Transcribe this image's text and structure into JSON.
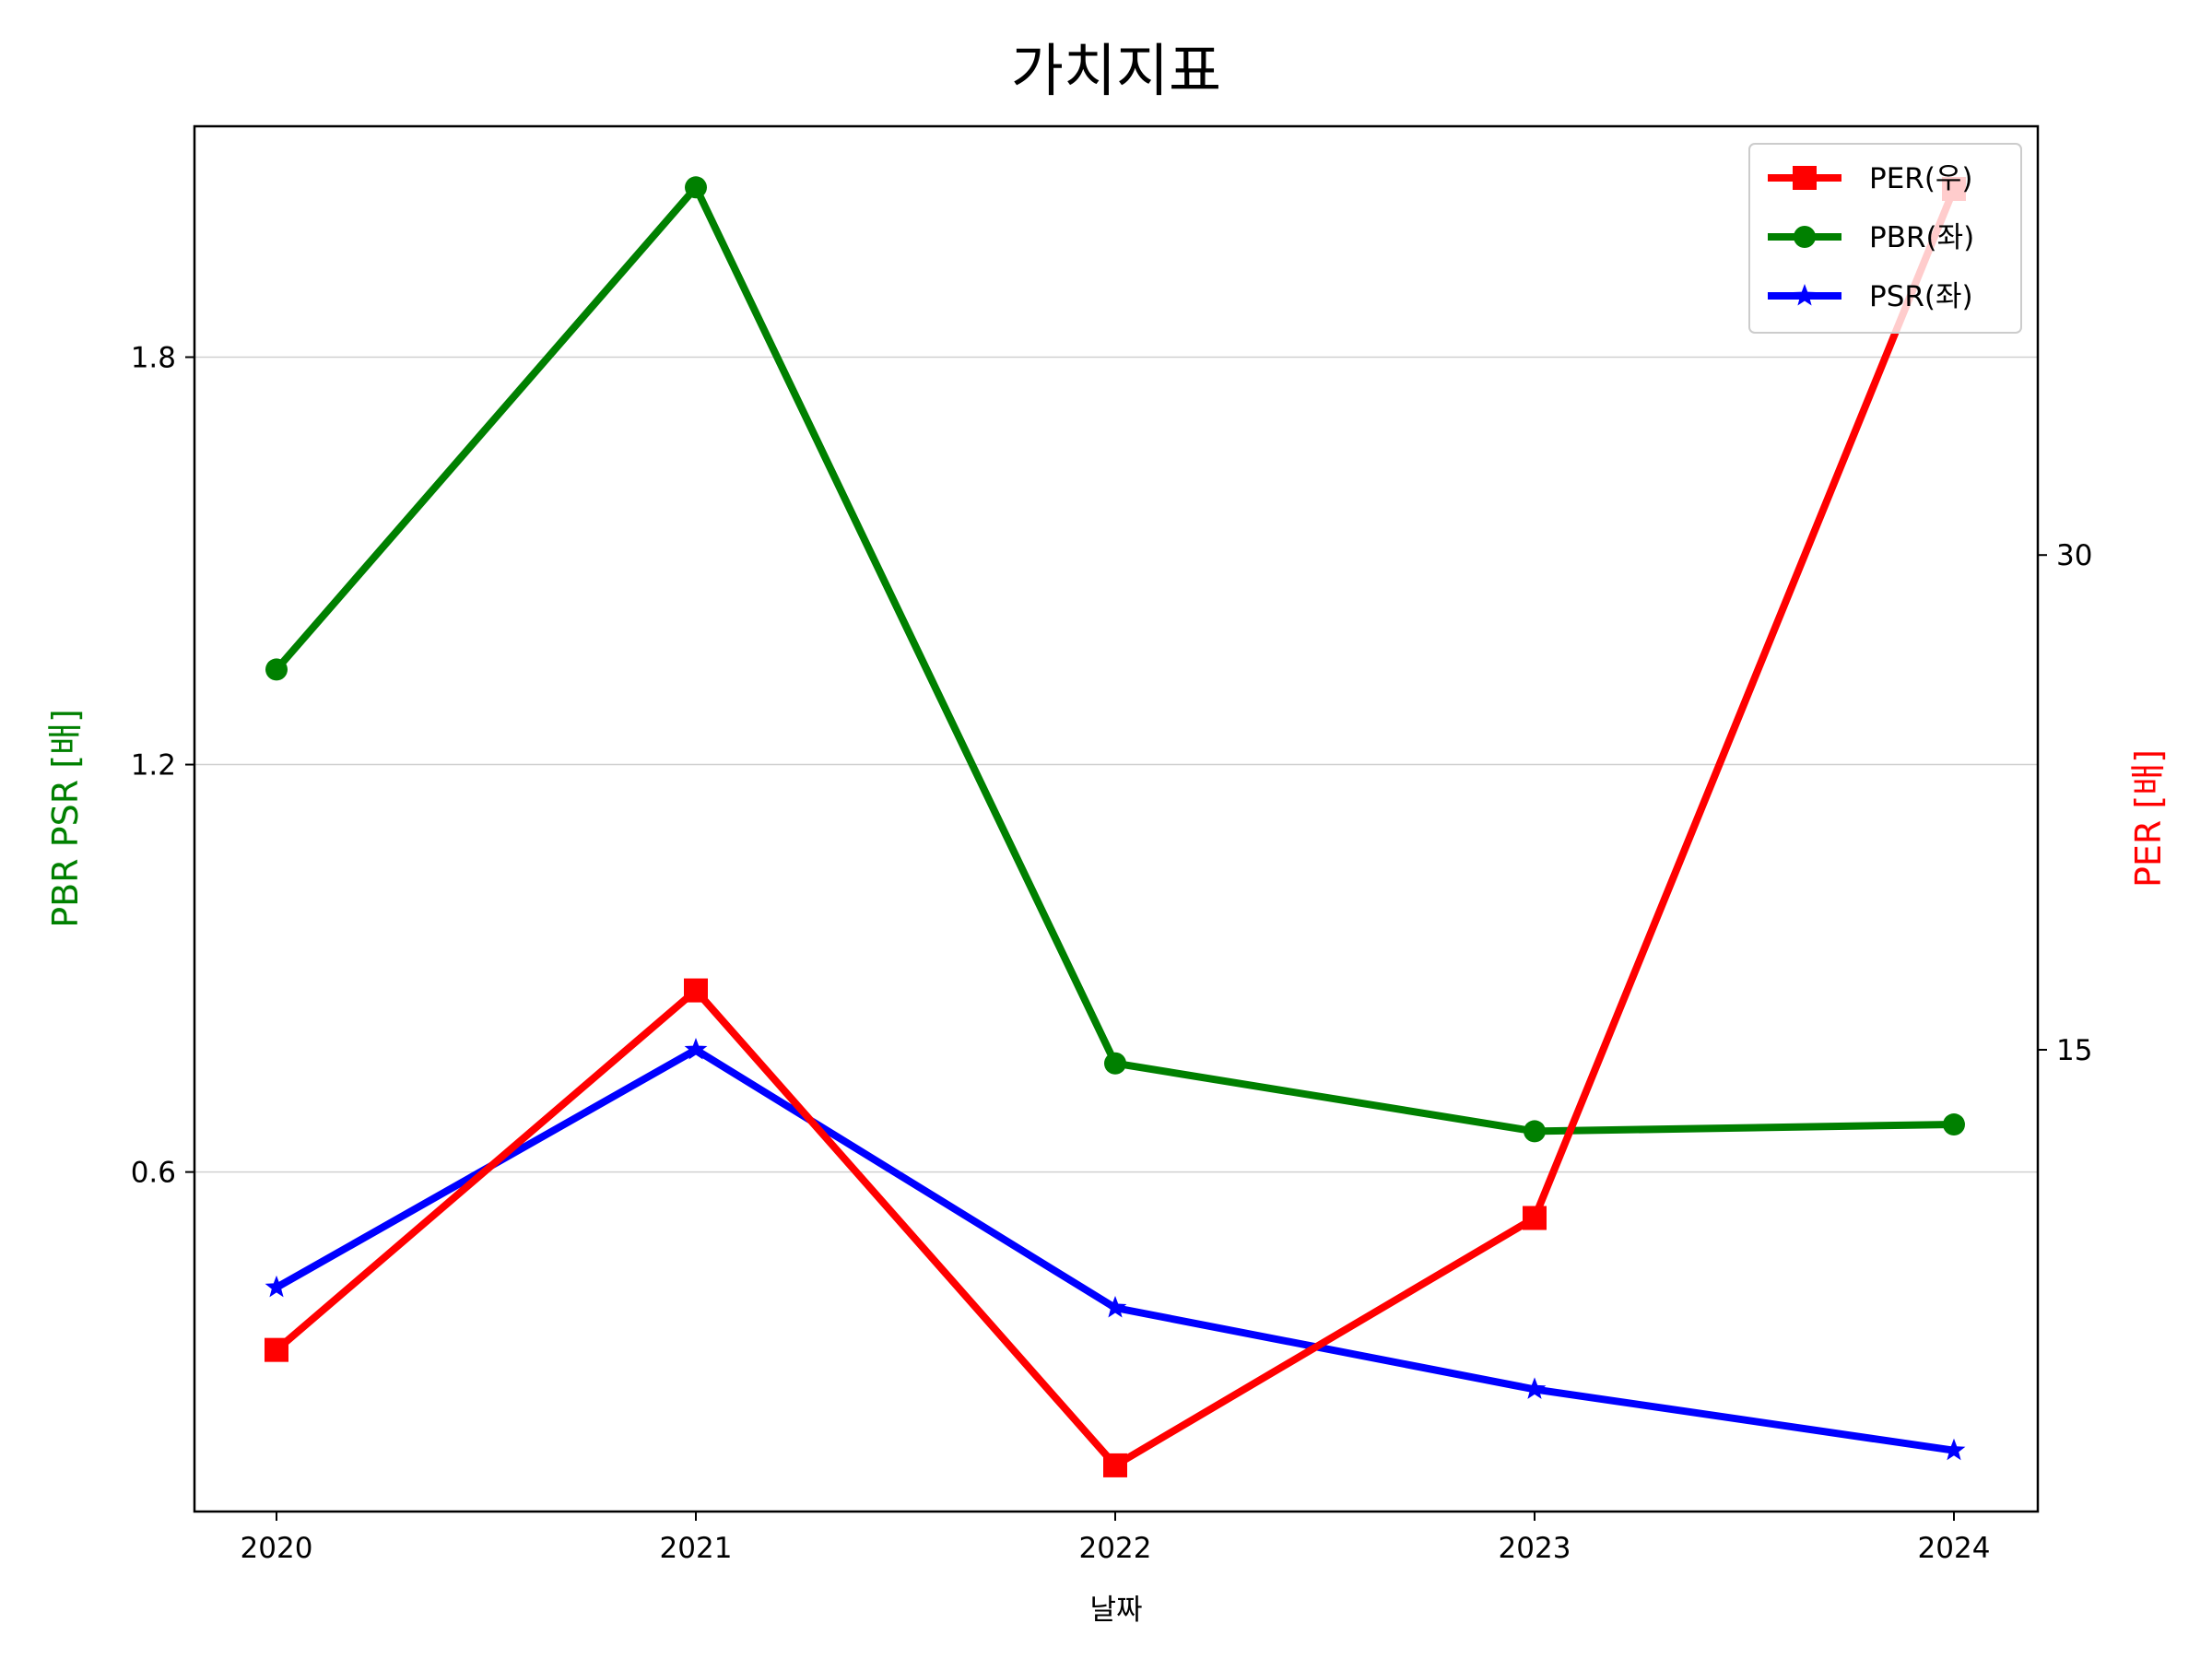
{
  "chart_data": {
    "type": "line",
    "title": "가치지표",
    "xlabel": "날짜",
    "ylabel_left": "PBR PSR [배]",
    "ylabel_right": "PER [배]",
    "categories": [
      "2020",
      "2021",
      "2022",
      "2023",
      "2024"
    ],
    "left_axis": {
      "ylim": [
        0.1,
        2.14
      ],
      "ticks": [
        0.6,
        1.2,
        1.8
      ],
      "tick_labels": [
        "0.6",
        "1.2",
        "1.8"
      ]
    },
    "right_axis": {
      "ylim": [
        1.0,
        43.0
      ],
      "ticks": [
        15,
        30
      ],
      "tick_labels": [
        "15",
        "30"
      ]
    },
    "grid": "horizontal (left axis)",
    "legend_position": "top-right",
    "series": [
      {
        "name": "PER(우)",
        "axis": "right",
        "color": "#ff0000",
        "marker": "square",
        "values": [
          5.9,
          16.8,
          2.4,
          9.9,
          41.1
        ]
      },
      {
        "name": "PBR(좌)",
        "axis": "left",
        "color": "#008000",
        "marker": "circle",
        "values": [
          1.34,
          2.05,
          0.76,
          0.66,
          0.67
        ]
      },
      {
        "name": "PSR(좌)",
        "axis": "left",
        "color": "#0000ff",
        "marker": "star",
        "values": [
          0.43,
          0.78,
          0.4,
          0.28,
          0.19
        ]
      }
    ]
  }
}
